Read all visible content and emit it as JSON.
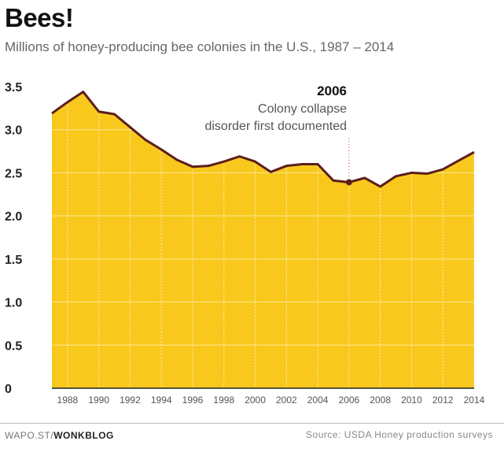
{
  "header": {
    "title": "Bees!",
    "subtitle": "Millions of honey-producing bee colonies in the U.S., 1987 – 2014"
  },
  "annotation": {
    "year": "2006",
    "line1": "Colony collapse",
    "line2": "disorder first documented"
  },
  "footer": {
    "credit_prefix": "WAPO.ST/",
    "credit_bold": "WONKBLOG",
    "source": "Source: USDA Honey production surveys"
  },
  "colors": {
    "area_fill": "#F8C91C",
    "line": "#5C1E1A",
    "grid": "#FFFFFF"
  },
  "chart_data": {
    "type": "area",
    "title": "Bees!",
    "subtitle": "Millions of honey-producing bee colonies in the U.S., 1987 – 2014",
    "x": [
      1987,
      1988,
      1989,
      1990,
      1991,
      1992,
      1993,
      1994,
      1995,
      1996,
      1997,
      1998,
      1999,
      2000,
      2001,
      2002,
      2003,
      2004,
      2005,
      2006,
      2007,
      2008,
      2009,
      2010,
      2011,
      2012,
      2013,
      2014
    ],
    "values": [
      3.19,
      3.32,
      3.44,
      3.21,
      3.18,
      3.03,
      2.88,
      2.77,
      2.65,
      2.57,
      2.58,
      2.63,
      2.69,
      2.63,
      2.51,
      2.58,
      2.6,
      2.6,
      2.41,
      2.39,
      2.44,
      2.34,
      2.46,
      2.5,
      2.49,
      2.54,
      2.64,
      2.74
    ],
    "xticks": [
      "1988",
      "1990",
      "1992",
      "1994",
      "1996",
      "1998",
      "2000",
      "2002",
      "2004",
      "2006",
      "2008",
      "2010",
      "2012",
      "2014"
    ],
    "yticks": [
      "3.5",
      "3.0",
      "2.5",
      "2.0",
      "1.5",
      "1.0",
      "0.5",
      "0"
    ],
    "ylim": [
      0,
      3.5
    ],
    "xlim": [
      1987,
      2014
    ],
    "highlight": {
      "x": 2006,
      "y": 2.39
    },
    "grid": true
  }
}
